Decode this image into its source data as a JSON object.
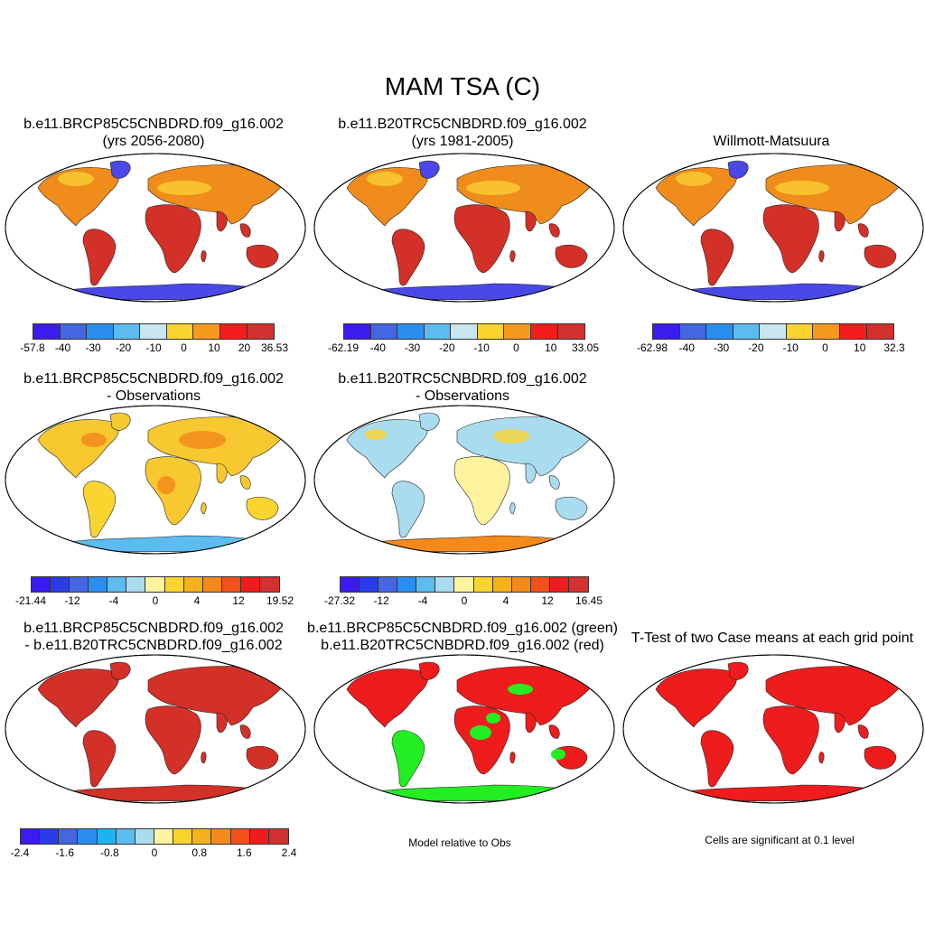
{
  "title": "MAM TSA (C)",
  "colors": {
    "land_hot": "#d33028",
    "land_red": "#ee1c1c",
    "green": "#22ee22",
    "ocean": "#ffffff",
    "ice_blue": "#4a48e6",
    "orange": "#f08c1c",
    "yellow": "#f7c830"
  },
  "panels": [
    {
      "line1": "b.e11.BRCP85C5CNBDRD.f09_g16.002",
      "line2": "(yrs 2056-2080)",
      "scheme": "abs"
    },
    {
      "line1": "b.e11.B20TRC5CNBDRD.f09_g16.002",
      "line2": "(yrs 1981-2005)",
      "scheme": "abs"
    },
    {
      "line1": "",
      "line2": "Willmott-Matsuura",
      "scheme": "abs"
    },
    {
      "line1": "b.e11.BRCP85C5CNBDRD.f09_g16.002",
      "line2": "- Observations",
      "scheme": "warm-diff"
    },
    {
      "line1": "b.e11.B20TRC5CNBDRD.f09_g16.002",
      "line2": "- Observations",
      "scheme": "cool-diff"
    },
    {
      "line1": "b.e11.BRCP85C5CNBDRD.f09_g16.002",
      "line2": "- b.e11.B20TRC5CNBDRD.f09_g16.002",
      "scheme": "uniform-hot"
    },
    {
      "line1": "b.e11.BRCP85C5CNBDRD.f09_g16.002 (green)",
      "line2": "b.e11.B20TRC5CNBDRD.f09_g16.002 (red)",
      "scheme": "redgreen"
    },
    {
      "line1": "T-Test of two Case means at each grid point",
      "line2": "",
      "scheme": "uniform-red"
    }
  ],
  "colorbars": [
    {
      "labels": [
        "-57.8",
        "-40",
        "-30",
        "-20",
        "-10",
        "0",
        "10",
        "20",
        "36.53"
      ],
      "colors": [
        "#3a1cf0",
        "#4466e0",
        "#2a8ef0",
        "#5cbcf0",
        "#c8e6f0",
        "#fcd430",
        "#f59a1c",
        "#f41c1c",
        "#d33030"
      ]
    },
    {
      "labels": [
        "-62.19",
        "-40",
        "-30",
        "-20",
        "-10",
        "0",
        "10",
        "33.05"
      ],
      "colors": [
        "#3a1cf0",
        "#4466e0",
        "#2a8ef0",
        "#5cbcf0",
        "#c8e6f0",
        "#fcd430",
        "#f59a1c",
        "#f41c1c",
        "#d33030"
      ]
    },
    {
      "labels": [
        "-62.98",
        "-40",
        "-30",
        "-20",
        "-10",
        "0",
        "10",
        "32.3"
      ],
      "colors": [
        "#3a1cf0",
        "#4466e0",
        "#2a8ef0",
        "#5cbcf0",
        "#c8e6f0",
        "#fcd430",
        "#f59a1c",
        "#f41c1c",
        "#d33030"
      ]
    },
    {
      "labels": [
        "-21.44",
        "-12",
        "-4",
        "0",
        "4",
        "12",
        "19.52"
      ],
      "colors": [
        "#3a1cf0",
        "#2a3ce8",
        "#4466e0",
        "#2a8ef0",
        "#5cbcf0",
        "#aadcf0",
        "#fff3a0",
        "#fcd430",
        "#f5b21c",
        "#f58a1c",
        "#f4501c",
        "#ee1c1c",
        "#d33030"
      ]
    },
    {
      "labels": [
        "-27.32",
        "-12",
        "-4",
        "0",
        "4",
        "12",
        "16.45"
      ],
      "colors": [
        "#3a1cf0",
        "#2a3ce8",
        "#4466e0",
        "#2a8ef0",
        "#5cbcf0",
        "#aadcf0",
        "#fff3a0",
        "#fcd430",
        "#f5b21c",
        "#f58a1c",
        "#f4501c",
        "#ee1c1c",
        "#d33030"
      ]
    },
    {
      "labels": [
        "-2.4",
        "-1.6",
        "-0.8",
        "0",
        "0.8",
        "1.6",
        "2.4"
      ],
      "colors": [
        "#3a1cf0",
        "#2a3ce8",
        "#4466e0",
        "#2a8ef0",
        "#1cb4f0",
        "#5cbcf0",
        "#aadcf0",
        "#fff3a0",
        "#fcd430",
        "#f5b21c",
        "#f58a1c",
        "#f4501c",
        "#ee1c1c",
        "#d33030"
      ]
    }
  ],
  "notes": {
    "model_relative": "Model relative to Obs",
    "significance": "Cells are significant at 0.1 level"
  }
}
